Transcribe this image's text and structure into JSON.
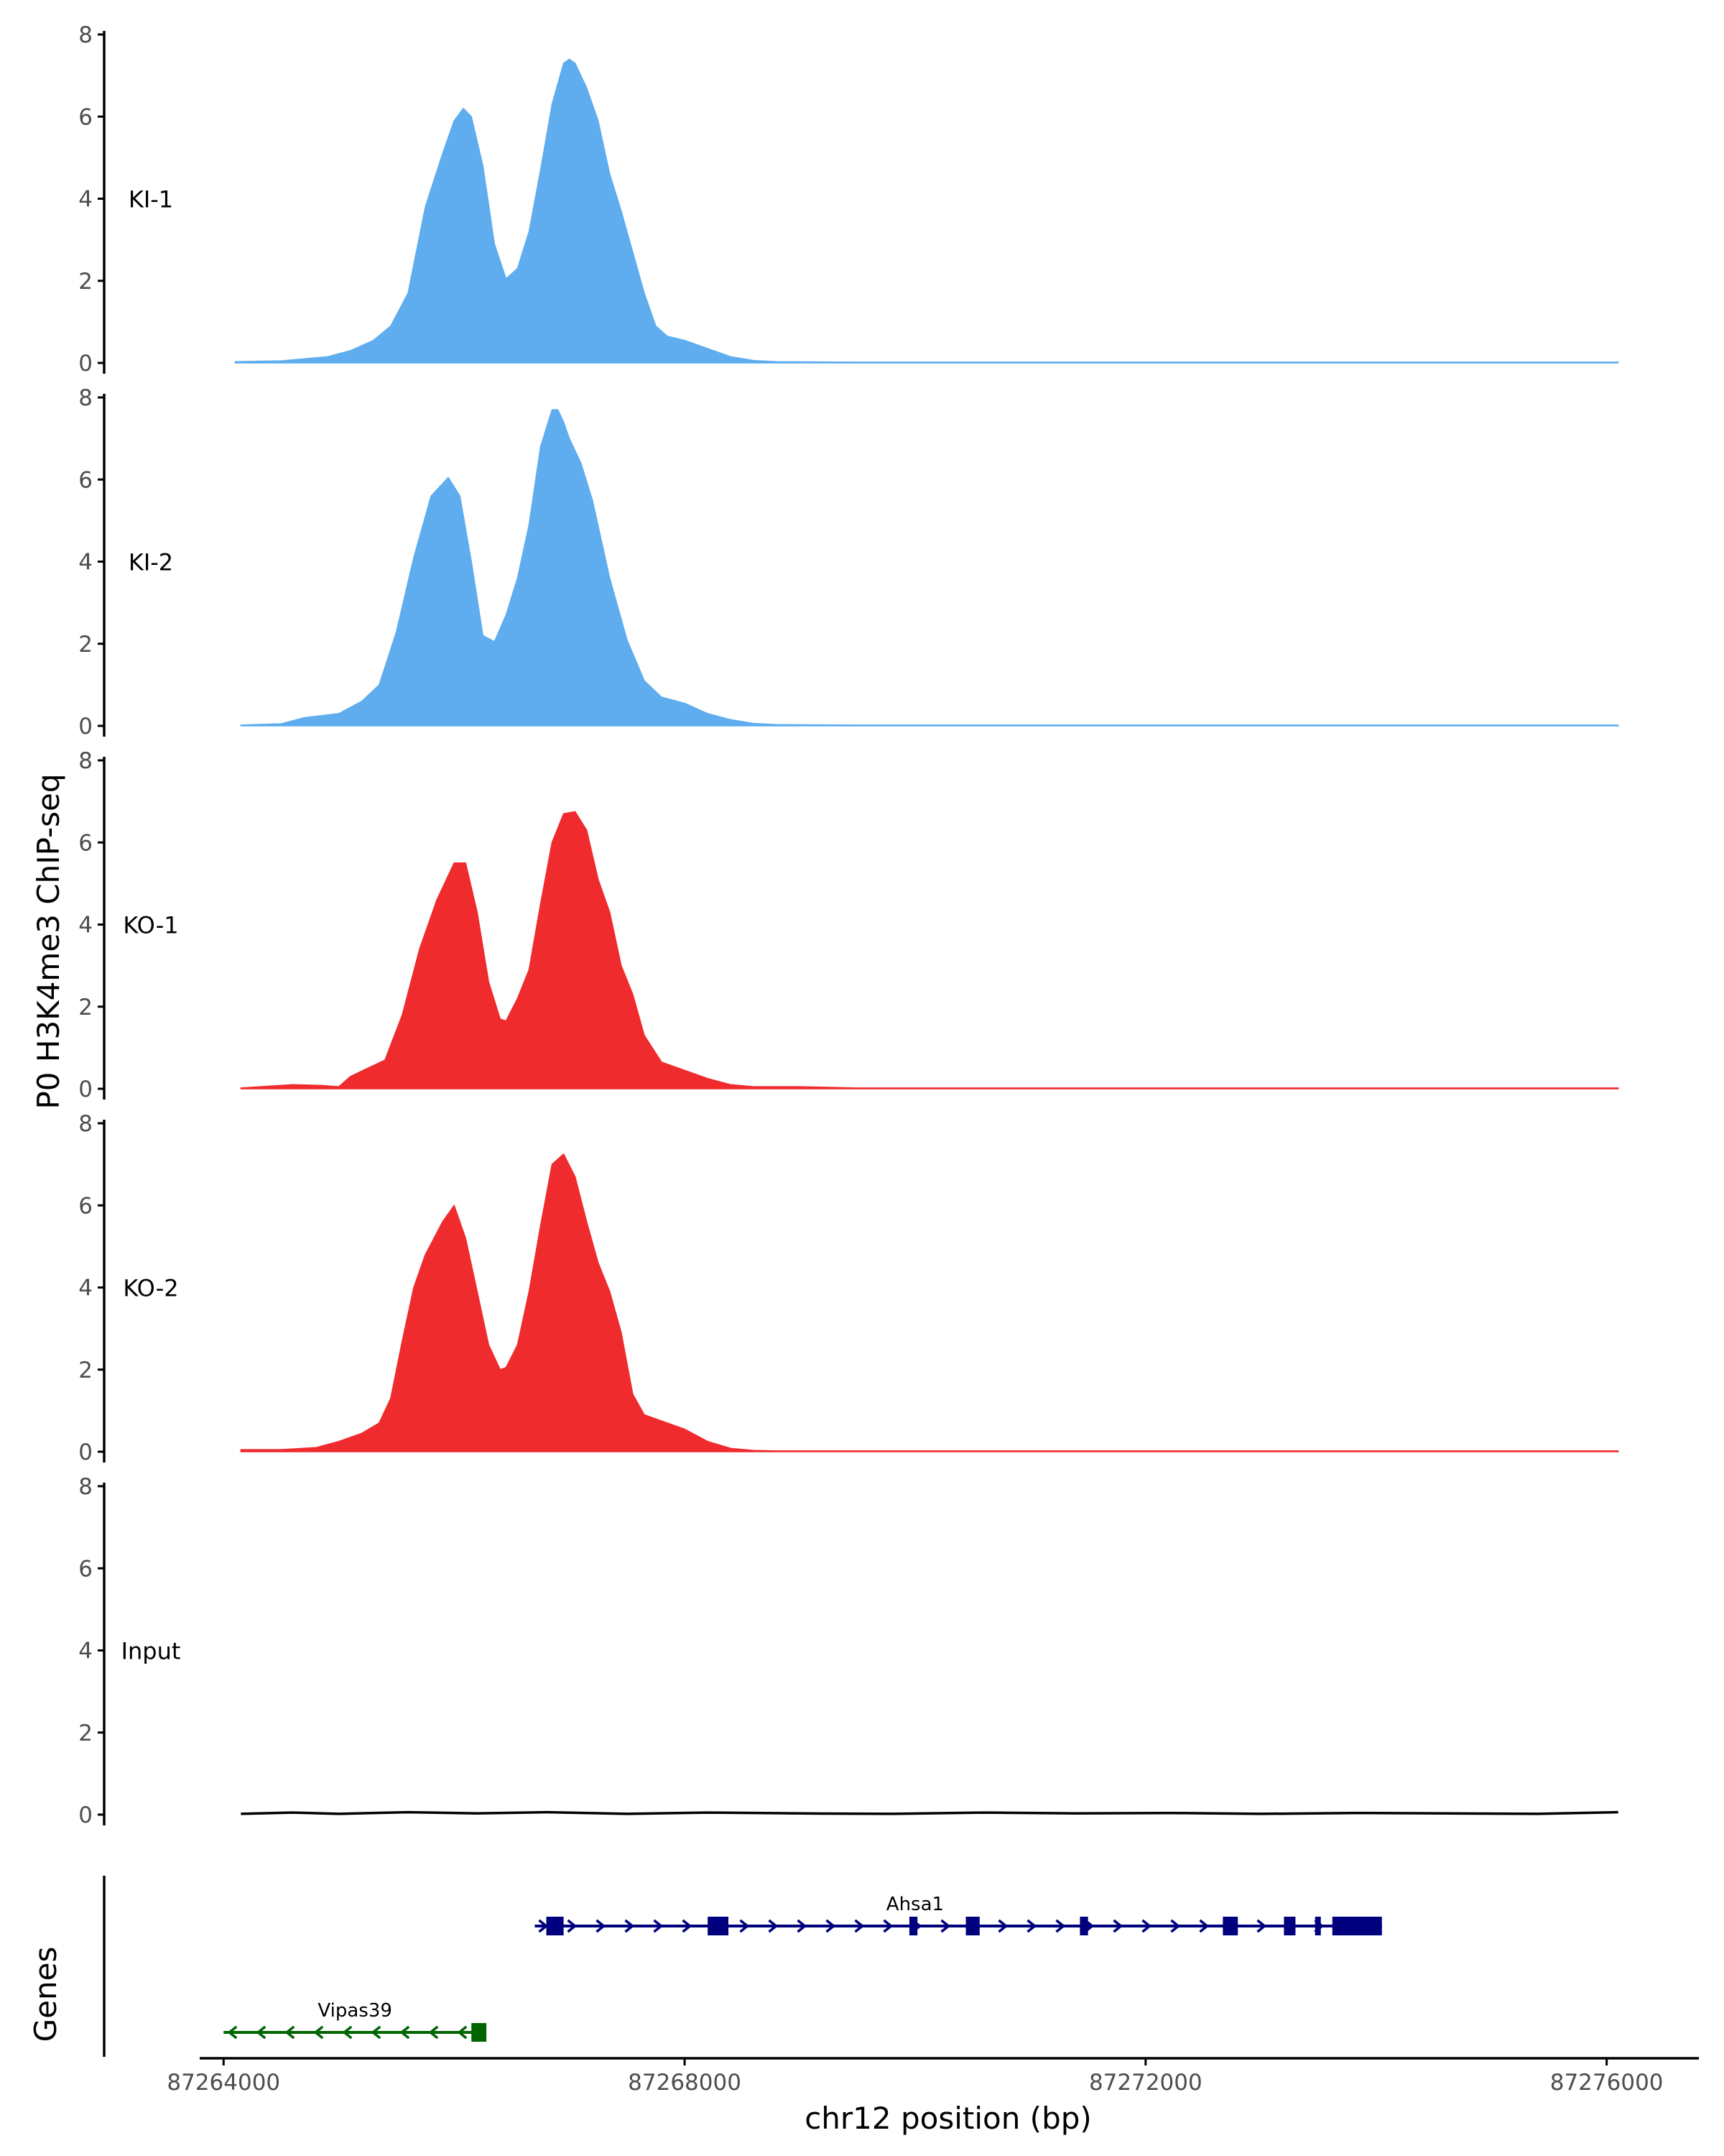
{
  "chart_data": {
    "type": "area",
    "ylabel": "P0 H3K4me3 ChIP-seq",
    "xlabel": "chr12 position (bp)",
    "xlim": [
      87263400,
      87276800
    ],
    "ylim": [
      0,
      8
    ],
    "y_ticks": [
      0,
      2,
      4,
      6,
      8
    ],
    "x_ticks": [
      87264000,
      87268000,
      87272000,
      87276000
    ],
    "x_tick_labels": [
      "87264000",
      "87268000",
      "87272000",
      "87276000"
    ],
    "series": [
      {
        "name": "KI-1",
        "color": "#5fadee",
        "x": [
          87264100,
          87264500,
          87264900,
          87265100,
          87265300,
          87265450,
          87265600,
          87265750,
          87265900,
          87266000,
          87266080,
          87266150,
          87266250,
          87266350,
          87266450,
          87266550,
          87266650,
          87266750,
          87266850,
          87266950,
          87267000,
          87267050,
          87267150,
          87267250,
          87267350,
          87267450,
          87267550,
          87267650,
          87267750,
          87267850,
          87268000,
          87268200,
          87268400,
          87268600,
          87268800,
          87269500,
          87270500,
          87271500,
          87272500,
          87273500,
          87274500,
          87275500,
          87276100
        ],
        "values": [
          0.03,
          0.05,
          0.15,
          0.3,
          0.55,
          0.9,
          1.7,
          3.8,
          5.1,
          5.9,
          6.2,
          6.0,
          4.8,
          2.9,
          2.05,
          2.3,
          3.2,
          4.7,
          6.3,
          7.3,
          7.4,
          7.3,
          6.7,
          5.9,
          4.6,
          3.7,
          2.7,
          1.7,
          0.9,
          0.65,
          0.55,
          0.35,
          0.15,
          0.06,
          0.03,
          0.02,
          0.02,
          0.02,
          0.02,
          0.02,
          0.02,
          0.02,
          0.02
        ]
      },
      {
        "name": "KI-2",
        "color": "#5fadee",
        "x": [
          87264150,
          87264500,
          87264700,
          87265000,
          87265200,
          87265350,
          87265500,
          87265650,
          87265800,
          87265950,
          87266050,
          87266150,
          87266250,
          87266350,
          87266450,
          87266550,
          87266650,
          87266750,
          87266850,
          87266900,
          87266950,
          87267000,
          87267100,
          87267200,
          87267350,
          87267500,
          87267650,
          87267800,
          87268000,
          87268200,
          87268400,
          87268600,
          87268800,
          87269500,
          87270500,
          87271500,
          87272500,
          87273500,
          87274500,
          87275500,
          87276100
        ],
        "values": [
          0.02,
          0.05,
          0.2,
          0.3,
          0.6,
          1.0,
          2.3,
          4.1,
          5.6,
          6.05,
          5.6,
          4.0,
          2.2,
          2.05,
          2.7,
          3.6,
          4.9,
          6.8,
          7.7,
          7.7,
          7.4,
          7.0,
          6.4,
          5.5,
          3.6,
          2.1,
          1.1,
          0.7,
          0.55,
          0.3,
          0.15,
          0.06,
          0.03,
          0.02,
          0.02,
          0.02,
          0.02,
          0.02,
          0.02,
          0.02,
          0.02
        ]
      },
      {
        "name": "KO-1",
        "color": "#ef2b2e",
        "x": [
          87264150,
          87264600,
          87264850,
          87265000,
          87265100,
          87265250,
          87265400,
          87265550,
          87265700,
          87265850,
          87266000,
          87266100,
          87266200,
          87266300,
          87266400,
          87266450,
          87266550,
          87266650,
          87266750,
          87266850,
          87266950,
          87267050,
          87267150,
          87267250,
          87267350,
          87267450,
          87267550,
          87267650,
          87267800,
          87268000,
          87268200,
          87268400,
          87268600,
          87269000,
          87269500,
          87270500,
          87271500,
          87272500,
          87273500,
          87274500,
          87275500,
          87276100
        ],
        "values": [
          0.02,
          0.1,
          0.08,
          0.05,
          0.3,
          0.5,
          0.7,
          1.8,
          3.4,
          4.6,
          5.5,
          5.5,
          4.3,
          2.6,
          1.7,
          1.65,
          2.2,
          2.9,
          4.5,
          6.0,
          6.7,
          6.75,
          6.3,
          5.1,
          4.3,
          3.0,
          2.3,
          1.3,
          0.65,
          0.45,
          0.25,
          0.1,
          0.05,
          0.05,
          0.02,
          0.02,
          0.02,
          0.02,
          0.02,
          0.02,
          0.02,
          0.02
        ]
      },
      {
        "name": "KO-2",
        "color": "#ef2b2e",
        "x": [
          87264150,
          87264500,
          87264800,
          87265000,
          87265200,
          87265350,
          87265450,
          87265550,
          87265650,
          87265750,
          87265900,
          87266000,
          87266100,
          87266200,
          87266300,
          87266400,
          87266450,
          87266550,
          87266650,
          87266750,
          87266850,
          87266950,
          87267050,
          87267150,
          87267250,
          87267350,
          87267450,
          87267550,
          87267650,
          87267800,
          87268000,
          87268200,
          87268400,
          87268600,
          87268800,
          87269500,
          87270500,
          87271500,
          87272500,
          87273500,
          87274500,
          87275500,
          87276100
        ],
        "values": [
          0.05,
          0.05,
          0.1,
          0.25,
          0.45,
          0.7,
          1.3,
          2.7,
          4.0,
          4.8,
          5.6,
          6.0,
          5.2,
          3.9,
          2.6,
          2.0,
          2.05,
          2.6,
          3.9,
          5.5,
          7.0,
          7.25,
          6.7,
          5.6,
          4.6,
          3.9,
          2.9,
          1.4,
          0.9,
          0.75,
          0.55,
          0.25,
          0.08,
          0.03,
          0.02,
          0.02,
          0.02,
          0.02,
          0.02,
          0.02,
          0.02,
          0.02,
          0.02
        ]
      },
      {
        "name": "Input",
        "color": "#000000",
        "x": [
          87264150,
          87264600,
          87265000,
          87265600,
          87266200,
          87266800,
          87267500,
          87268200,
          87269000,
          87269800,
          87270600,
          87271400,
          87272200,
          87273000,
          87273800,
          87274600,
          87275400,
          87276100
        ],
        "values": [
          0.02,
          0.05,
          0.02,
          0.06,
          0.03,
          0.06,
          0.02,
          0.05,
          0.03,
          0.02,
          0.05,
          0.03,
          0.04,
          0.02,
          0.04,
          0.03,
          0.02,
          0.06
        ]
      }
    ],
    "genes": {
      "title": "Genes",
      "items": [
        {
          "name": "Ahsa1",
          "strand": "+",
          "color": "#00007f",
          "start": 87266700,
          "end": 87274050,
          "exons": [
            [
              87266800,
              87266950
            ],
            [
              87268200,
              87268380
            ],
            [
              87269950,
              87270020
            ],
            [
              87270440,
              87270560
            ],
            [
              87271430,
              87271500
            ],
            [
              87272670,
              87272800
            ],
            [
              87273200,
              87273300
            ],
            [
              87273470,
              87273520
            ],
            [
              87273620,
              87274050
            ]
          ]
        },
        {
          "name": "Vipas39",
          "strand": "-",
          "color": "#006400",
          "start": 87264000,
          "end": 87266280,
          "exons": [
            [
              87266150,
              87266280
            ]
          ]
        }
      ]
    }
  }
}
